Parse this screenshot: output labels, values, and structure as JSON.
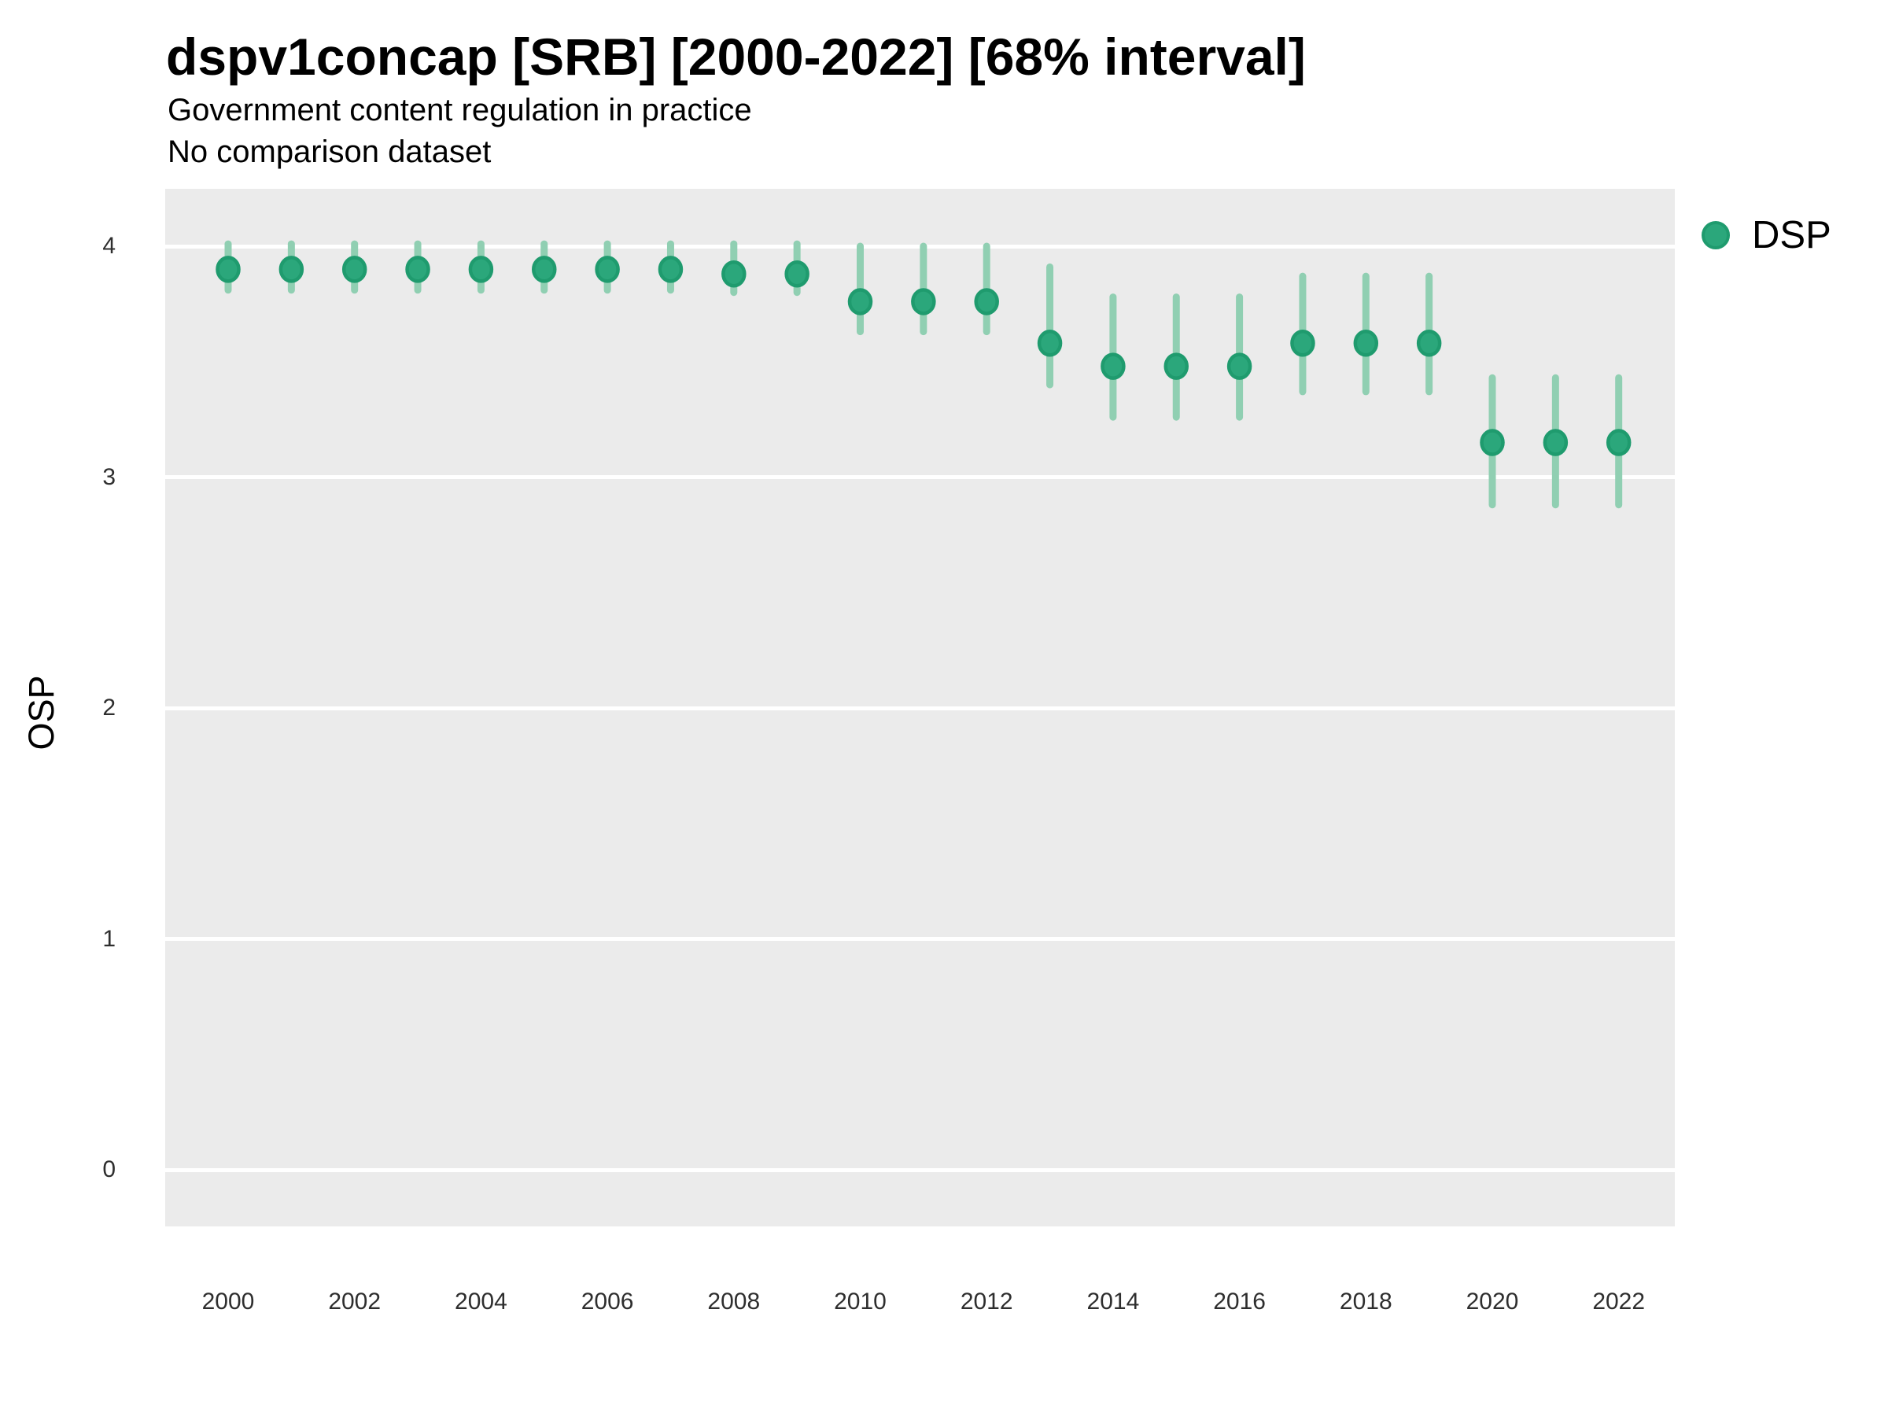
{
  "title": "dspv1concap [SRB] [2000-2022] [68% interval]",
  "subtitle_line1": "Government content regulation in practice",
  "subtitle_line2": "No comparison dataset",
  "y_axis_title": "OSP",
  "legend": {
    "label": "DSP"
  },
  "colors": {
    "panel_background": "#EBEBEB",
    "gridline": "#FFFFFF",
    "point_fill": "#2BA77B",
    "point_stroke": "#1F9B6E",
    "interval_bar": "#90CFB2",
    "tick_text": "#2e2e2e",
    "text": "#000000"
  },
  "chart_data": {
    "type": "scatter",
    "title": "dspv1concap [SRB] [2000-2022] [68% interval]",
    "subtitle": "Government content regulation in practice",
    "note": "No comparison dataset",
    "interval": "68% interval",
    "xlabel": "",
    "ylabel": "OSP",
    "ylim": [
      -0.25,
      4.25
    ],
    "yticks": [
      0,
      1,
      2,
      3,
      4
    ],
    "xticks": [
      2000,
      2002,
      2004,
      2006,
      2008,
      2010,
      2012,
      2014,
      2016,
      2018,
      2020,
      2022
    ],
    "grid": "major-horizontal-white-on-gray",
    "legend_position": "right",
    "series": [
      {
        "name": "DSP",
        "x": [
          2000,
          2001,
          2002,
          2003,
          2004,
          2005,
          2006,
          2007,
          2008,
          2009,
          2010,
          2011,
          2012,
          2013,
          2014,
          2015,
          2016,
          2017,
          2018,
          2019,
          2020,
          2021,
          2022
        ],
        "y": [
          3.9,
          3.9,
          3.9,
          3.9,
          3.9,
          3.9,
          3.9,
          3.9,
          3.88,
          3.88,
          3.76,
          3.76,
          3.76,
          3.58,
          3.48,
          3.48,
          3.48,
          3.58,
          3.58,
          3.58,
          3.15,
          3.15,
          3.15
        ],
        "lower": [
          3.81,
          3.81,
          3.81,
          3.81,
          3.81,
          3.81,
          3.81,
          3.81,
          3.8,
          3.8,
          3.63,
          3.63,
          3.63,
          3.4,
          3.26,
          3.26,
          3.26,
          3.37,
          3.37,
          3.37,
          2.88,
          2.88,
          2.88
        ],
        "upper": [
          4.01,
          4.01,
          4.01,
          4.01,
          4.01,
          4.01,
          4.01,
          4.01,
          4.01,
          4.01,
          4.0,
          4.0,
          4.0,
          3.91,
          3.78,
          3.78,
          3.78,
          3.87,
          3.87,
          3.87,
          3.43,
          3.43,
          3.43
        ]
      }
    ]
  }
}
